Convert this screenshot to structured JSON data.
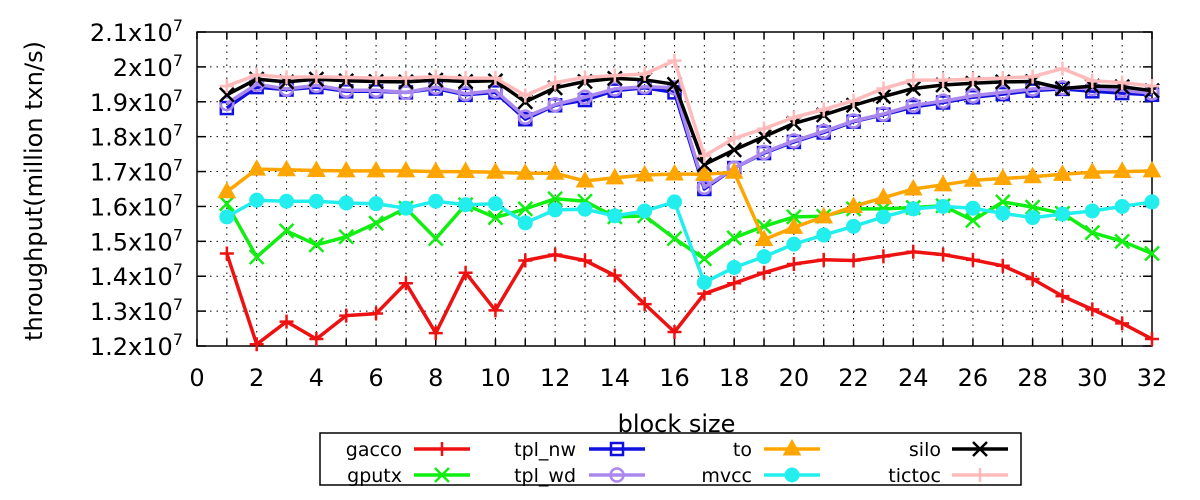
{
  "chart_data": {
    "type": "line",
    "title": "",
    "xlabel": "block size",
    "ylabel": "throughput(million txn/s)",
    "xlim": [
      0,
      32
    ],
    "ylim": [
      12000000,
      21000000
    ],
    "x_ticks": [
      0,
      2,
      4,
      6,
      8,
      10,
      12,
      14,
      16,
      18,
      20,
      22,
      24,
      26,
      28,
      30,
      32
    ],
    "y_ticks": [
      {
        "value": 12000000,
        "mantissa": "1.2x10",
        "exp": "7"
      },
      {
        "value": 13000000,
        "mantissa": "1.3x10",
        "exp": "7"
      },
      {
        "value": 14000000,
        "mantissa": "1.4x10",
        "exp": "7"
      },
      {
        "value": 15000000,
        "mantissa": "1.5x10",
        "exp": "7"
      },
      {
        "value": 16000000,
        "mantissa": "1.6x10",
        "exp": "7"
      },
      {
        "value": 17000000,
        "mantissa": "1.7x10",
        "exp": "7"
      },
      {
        "value": 18000000,
        "mantissa": "1.8x10",
        "exp": "7"
      },
      {
        "value": 19000000,
        "mantissa": "1.9x10",
        "exp": "7"
      },
      {
        "value": 20000000,
        "mantissa": "2x10",
        "exp": "7"
      },
      {
        "value": 21000000,
        "mantissa": "2.1x10",
        "exp": "7"
      }
    ],
    "grid": true,
    "legend_position": "bottom",
    "x": [
      1,
      2,
      3,
      4,
      5,
      6,
      7,
      8,
      9,
      10,
      11,
      12,
      13,
      14,
      15,
      16,
      17,
      18,
      19,
      20,
      21,
      22,
      23,
      24,
      25,
      26,
      27,
      28,
      29,
      30,
      31,
      32
    ],
    "series": [
      {
        "name": "gacco",
        "color": "#ee1111",
        "marker": "plus",
        "values": [
          14650000,
          12050000,
          12700000,
          12200000,
          12870000,
          12930000,
          13800000,
          12370000,
          14100000,
          13020000,
          14450000,
          14620000,
          14450000,
          14020000,
          13200000,
          12400000,
          13500000,
          13800000,
          14100000,
          14350000,
          14470000,
          14450000,
          14570000,
          14700000,
          14620000,
          14470000,
          14300000,
          13920000,
          13430000,
          13050000,
          12650000,
          12200000
        ]
      },
      {
        "name": "gputx",
        "color": "#11ee11",
        "marker": "x",
        "values": [
          16080000,
          14550000,
          15300000,
          14900000,
          15130000,
          15520000,
          15950000,
          15080000,
          16050000,
          15680000,
          15930000,
          16220000,
          16150000,
          15700000,
          15730000,
          15080000,
          14500000,
          15100000,
          15430000,
          15700000,
          15720000,
          15930000,
          15930000,
          15970000,
          16020000,
          15600000,
          16130000,
          15980000,
          15800000,
          15250000,
          15000000,
          14650000
        ]
      },
      {
        "name": "tpl_nw",
        "color": "#1111dd",
        "marker": "square",
        "values": [
          18820000,
          19420000,
          19350000,
          19420000,
          19300000,
          19300000,
          19270000,
          19380000,
          19200000,
          19270000,
          18500000,
          18900000,
          19050000,
          19320000,
          19400000,
          19270000,
          16500000,
          17100000,
          17530000,
          17850000,
          18120000,
          18430000,
          18630000,
          18850000,
          18980000,
          19130000,
          19220000,
          19320000,
          19370000,
          19300000,
          19250000,
          19200000
        ]
      },
      {
        "name": "tpl_wd",
        "color": "#aa88ee",
        "marker": "circle",
        "values": [
          18950000,
          19500000,
          19370000,
          19470000,
          19330000,
          19330000,
          19270000,
          19420000,
          19230000,
          19320000,
          18560000,
          18920000,
          19130000,
          19370000,
          19430000,
          19400000,
          16550000,
          17100000,
          17550000,
          17880000,
          18150000,
          18450000,
          18650000,
          18900000,
          19020000,
          19170000,
          19270000,
          19370000,
          19400000,
          19380000,
          19330000,
          19250000
        ]
      },
      {
        "name": "to",
        "color": "#ffa500",
        "marker": "triangle",
        "values": [
          16420000,
          17070000,
          17050000,
          17030000,
          17020000,
          17020000,
          17020000,
          17000000,
          17000000,
          16980000,
          16950000,
          16950000,
          16730000,
          16820000,
          16900000,
          16930000,
          16920000,
          16980000,
          15050000,
          15400000,
          15700000,
          16000000,
          16250000,
          16500000,
          16620000,
          16750000,
          16800000,
          16850000,
          16920000,
          16980000,
          17000000,
          17020000
        ]
      },
      {
        "name": "mvcc",
        "color": "#22eeee",
        "marker": "dot",
        "values": [
          15700000,
          16180000,
          16150000,
          16150000,
          16100000,
          16080000,
          15950000,
          16150000,
          16050000,
          16080000,
          15530000,
          15900000,
          15920000,
          15730000,
          15870000,
          16130000,
          13820000,
          14250000,
          14560000,
          14920000,
          15180000,
          15430000,
          15700000,
          15930000,
          16000000,
          15950000,
          15800000,
          15680000,
          15780000,
          15870000,
          16000000,
          16130000
        ]
      },
      {
        "name": "silo",
        "color": "#000000",
        "marker": "x",
        "values": [
          19200000,
          19650000,
          19570000,
          19650000,
          19600000,
          19580000,
          19570000,
          19620000,
          19580000,
          19600000,
          19000000,
          19400000,
          19580000,
          19670000,
          19630000,
          19500000,
          17200000,
          17620000,
          18000000,
          18380000,
          18620000,
          18900000,
          19150000,
          19380000,
          19480000,
          19530000,
          19570000,
          19580000,
          19380000,
          19450000,
          19430000,
          19320000
        ]
      },
      {
        "name": "tictoc",
        "color": "#ffbbbb",
        "marker": "plus",
        "values": [
          19450000,
          19770000,
          19700000,
          19720000,
          19700000,
          19680000,
          19680000,
          19720000,
          19680000,
          19680000,
          19180000,
          19550000,
          19700000,
          19750000,
          19800000,
          20180000,
          17450000,
          17950000,
          18230000,
          18550000,
          18780000,
          19030000,
          19380000,
          19620000,
          19620000,
          19650000,
          19680000,
          19720000,
          19950000,
          19600000,
          19550000,
          19450000
        ]
      }
    ]
  }
}
